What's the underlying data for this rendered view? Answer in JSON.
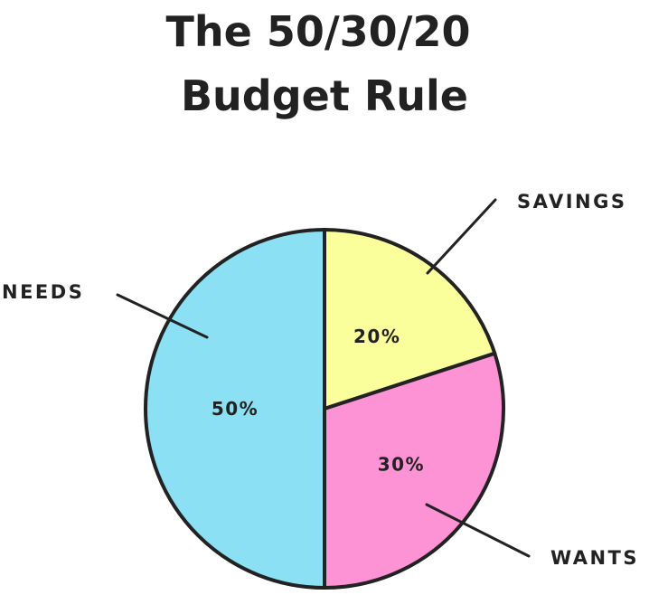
{
  "chart_data": {
    "type": "pie",
    "title_lines": [
      "The 50/30/20",
      "Budget Rule"
    ],
    "slices": [
      {
        "label": "SAVINGS",
        "value": 20,
        "value_label": "20%",
        "color": "#FAFE9B"
      },
      {
        "label": "WANTS",
        "value": 30,
        "value_label": "30%",
        "color": "#FD92D5"
      },
      {
        "label": "NEEDS",
        "value": 50,
        "value_label": "50%",
        "color": "#8CE0F3"
      }
    ],
    "start_direction": "12 o'clock",
    "direction": "clockwise",
    "outline_color": "#222222",
    "labels_style": "outside with leader lines"
  }
}
